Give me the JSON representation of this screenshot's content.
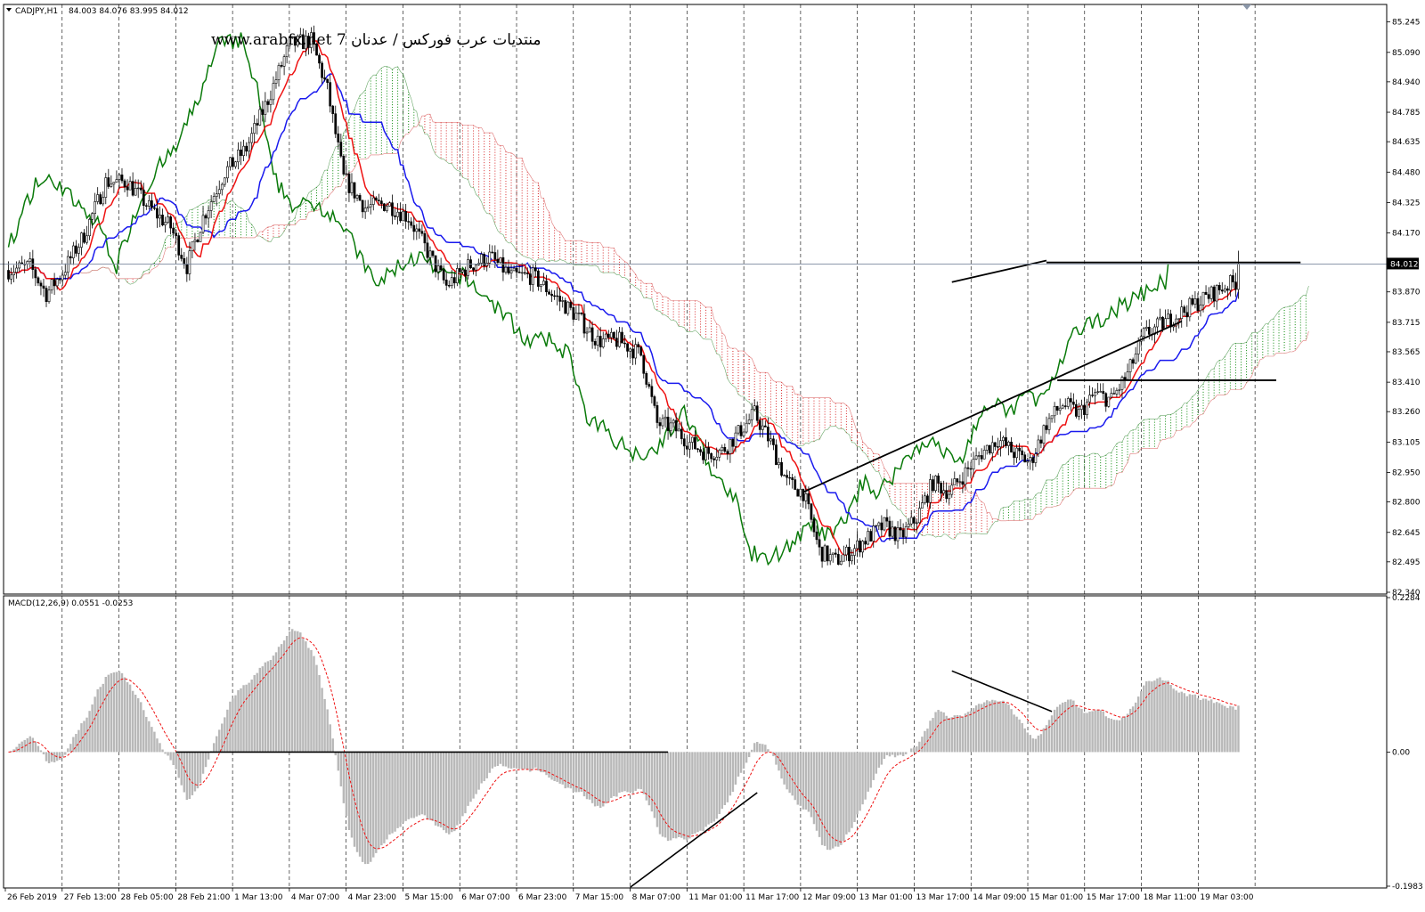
{
  "chart_data": [
    {
      "type": "candlestick",
      "symbol_label": "CADJPY,H1",
      "ohlc_label": "84.003 84.076 83.995 84.012",
      "watermark": "www.arabfx.net 7 منتديات عرب فوركس / عدنان",
      "current_price": 84.012,
      "current_price_label": "84.012",
      "ylim": [
        82.34,
        85.325
      ],
      "y_ticks": [
        "85.245",
        "85.090",
        "84.940",
        "84.785",
        "84.635",
        "84.480",
        "84.325",
        "84.170",
        "83.870",
        "83.715",
        "83.565",
        "83.410",
        "83.260",
        "83.105",
        "82.950",
        "82.800",
        "82.645",
        "82.495",
        "82.340"
      ],
      "y_tick_values": [
        85.245,
        85.09,
        84.94,
        84.785,
        84.635,
        84.48,
        84.325,
        84.17,
        83.87,
        83.715,
        83.565,
        83.41,
        83.26,
        83.105,
        82.95,
        82.8,
        82.645,
        82.495,
        82.34
      ],
      "x_labels": [
        "26 Feb 2019",
        "27 Feb 13:00",
        "28 Feb 05:00",
        "28 Feb 21:00",
        "1 Mar 13:00",
        "4 Mar 07:00",
        "4 Mar 23:00",
        "5 Mar 15:00",
        "6 Mar 07:00",
        "6 Mar 23:00",
        "7 Mar 15:00",
        "8 Mar 07:00",
        "11 Mar 01:00",
        "11 Mar 17:00",
        "12 Mar 09:00",
        "13 Mar 01:00",
        "13 Mar 17:00",
        "14 Mar 09:00",
        "15 Mar 01:00",
        "15 Mar 17:00",
        "18 Mar 11:00",
        "19 Mar 03:00"
      ],
      "bar_count": 456,
      "close_path_keypoints": [
        [
          0,
          83.98
        ],
        [
          8,
          84.0
        ],
        [
          14,
          83.86
        ],
        [
          20,
          83.97
        ],
        [
          28,
          84.16
        ],
        [
          36,
          84.43
        ],
        [
          44,
          84.43
        ],
        [
          52,
          84.3
        ],
        [
          60,
          84.2
        ],
        [
          66,
          84.0
        ],
        [
          72,
          84.25
        ],
        [
          80,
          84.48
        ],
        [
          88,
          84.6
        ],
        [
          96,
          84.85
        ],
        [
          104,
          85.13
        ],
        [
          112,
          85.15
        ],
        [
          118,
          84.9
        ],
        [
          124,
          84.45
        ],
        [
          132,
          84.3
        ],
        [
          140,
          84.32
        ],
        [
          148,
          84.25
        ],
        [
          156,
          84.05
        ],
        [
          162,
          83.9
        ],
        [
          170,
          84.0
        ],
        [
          178,
          84.05
        ],
        [
          186,
          83.95
        ],
        [
          194,
          83.95
        ],
        [
          202,
          83.85
        ],
        [
          210,
          83.75
        ],
        [
          218,
          83.62
        ],
        [
          226,
          83.62
        ],
        [
          234,
          83.55
        ],
        [
          240,
          83.2
        ],
        [
          246,
          83.18
        ],
        [
          252,
          83.1
        ],
        [
          258,
          83.05
        ],
        [
          264,
          83.06
        ],
        [
          270,
          83.15
        ],
        [
          276,
          83.25
        ],
        [
          282,
          83.1
        ],
        [
          288,
          82.9
        ],
        [
          294,
          82.85
        ],
        [
          300,
          82.55
        ],
        [
          306,
          82.5
        ],
        [
          312,
          82.55
        ],
        [
          318,
          82.62
        ],
        [
          324,
          82.68
        ],
        [
          330,
          82.62
        ],
        [
          336,
          82.72
        ],
        [
          342,
          82.9
        ],
        [
          348,
          82.85
        ],
        [
          354,
          82.95
        ],
        [
          360,
          83.05
        ],
        [
          366,
          83.12
        ],
        [
          372,
          83.05
        ],
        [
          378,
          83.0
        ],
        [
          384,
          83.2
        ],
        [
          390,
          83.3
        ],
        [
          396,
          83.25
        ],
        [
          402,
          83.35
        ],
        [
          408,
          83.32
        ],
        [
          414,
          83.45
        ],
        [
          420,
          83.65
        ],
        [
          426,
          83.7
        ],
        [
          432,
          83.75
        ],
        [
          438,
          83.8
        ],
        [
          444,
          83.85
        ],
        [
          450,
          83.9
        ],
        [
          456,
          83.93
        ],
        [
          462,
          83.95
        ]
      ]
    },
    {
      "type": "indicator",
      "label": "MACD(12,26,9) 0.0551 -0.0253",
      "ylim": [
        -0.1983,
        0.2284
      ],
      "y_ticks": [
        "0.2284",
        "0.00",
        "-0.1983"
      ],
      "y_tick_values": [
        0.2284,
        0.0,
        -0.1983
      ]
    }
  ]
}
